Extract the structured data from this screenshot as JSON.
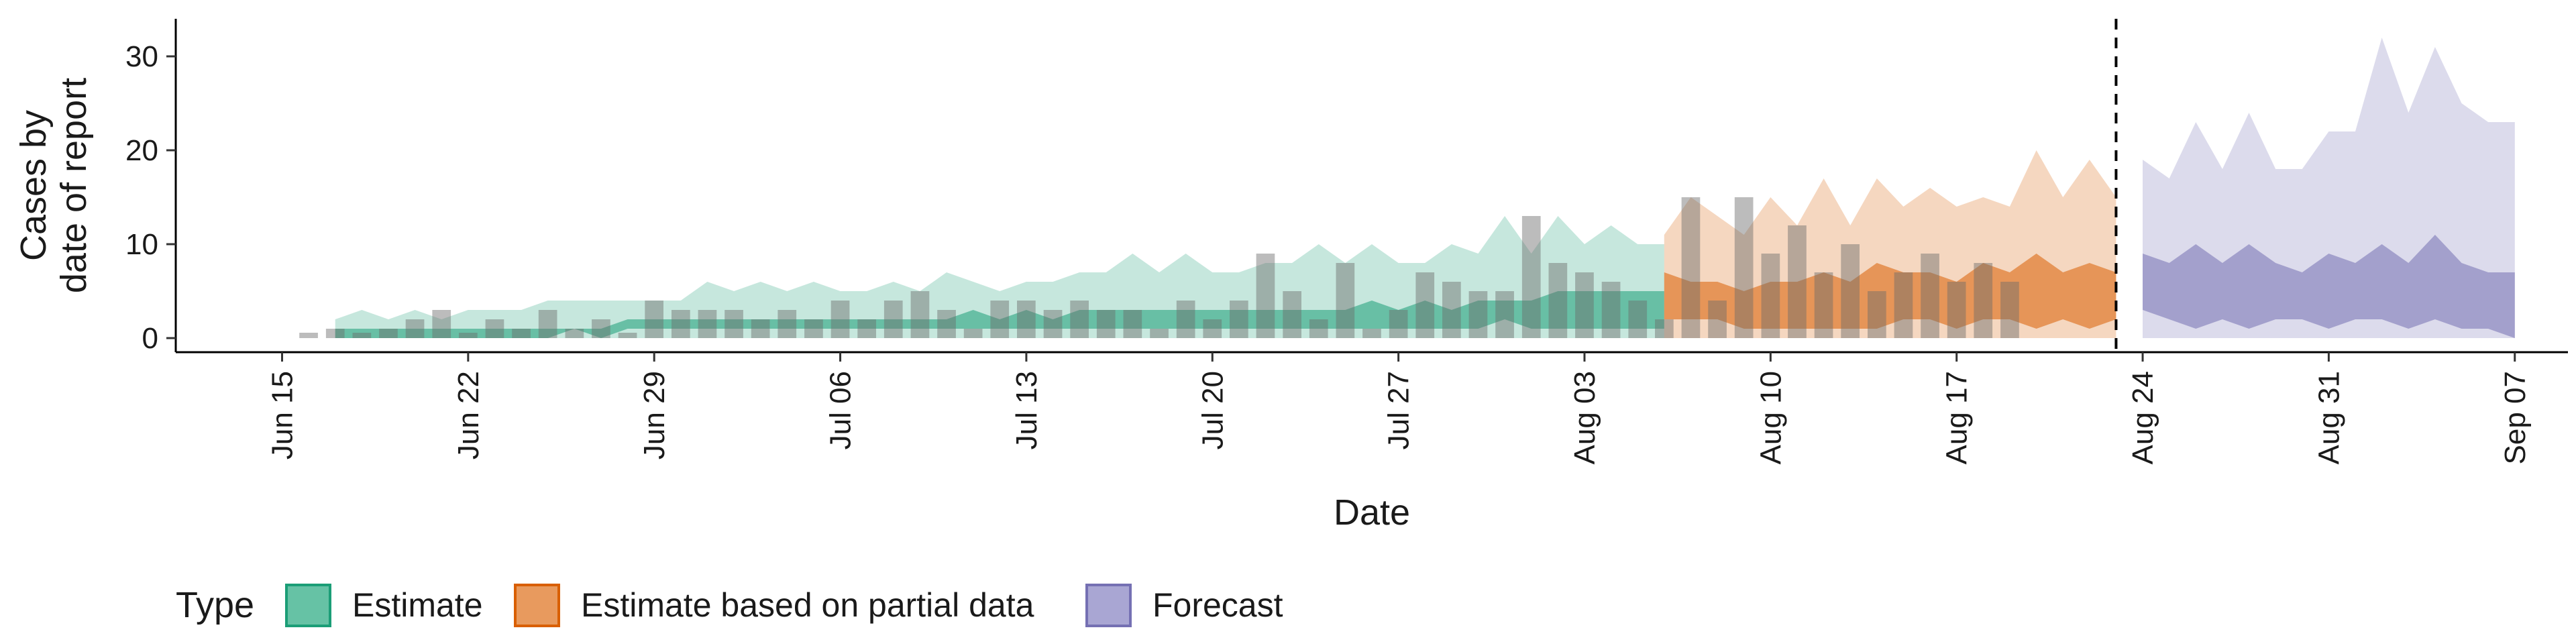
{
  "chart_data": {
    "type": "area",
    "xlabel": "Date",
    "ylabel_lines": [
      "Cases by",
      "date of report"
    ],
    "ylim": [
      -1.5,
      34
    ],
    "yticks": [
      0,
      10,
      20,
      30
    ],
    "xlim": [
      "2020-06-11",
      "2020-09-09"
    ],
    "xticks": [
      {
        "date": "2020-06-15",
        "label": "Jun 15"
      },
      {
        "date": "2020-06-22",
        "label": "Jun 22"
      },
      {
        "date": "2020-06-29",
        "label": "Jun 29"
      },
      {
        "date": "2020-07-06",
        "label": "Jul 06"
      },
      {
        "date": "2020-07-13",
        "label": "Jul 13"
      },
      {
        "date": "2020-07-20",
        "label": "Jul 20"
      },
      {
        "date": "2020-07-27",
        "label": "Jul 27"
      },
      {
        "date": "2020-08-03",
        "label": "Aug 03"
      },
      {
        "date": "2020-08-10",
        "label": "Aug 10"
      },
      {
        "date": "2020-08-17",
        "label": "Aug 17"
      },
      {
        "date": "2020-08-24",
        "label": "Aug 24"
      },
      {
        "date": "2020-08-31",
        "label": "Aug 31"
      },
      {
        "date": "2020-09-07",
        "label": "Sep 07"
      }
    ],
    "forecast_start": "2020-08-23",
    "legend": {
      "title": "Type",
      "position": "bottom-left",
      "items": [
        {
          "label": "Estimate",
          "fill": "#66C2A5",
          "stroke": "#1B9E77"
        },
        {
          "label": "Estimate based on partial data",
          "fill": "#E89A5E",
          "stroke": "#D95F02"
        },
        {
          "label": "Forecast",
          "fill": "#A9A6D3",
          "stroke": "#7570B3"
        }
      ]
    },
    "observed": {
      "start": "2020-06-16",
      "values": [
        0,
        1,
        0,
        1,
        2,
        3,
        0,
        2,
        1,
        3,
        1,
        2,
        0,
        4,
        3,
        3,
        3,
        2,
        3,
        2,
        4,
        2,
        4,
        5,
        3,
        1,
        4,
        4,
        3,
        4,
        3,
        3,
        1,
        4,
        2,
        4,
        9,
        5,
        2,
        8,
        1,
        3,
        7,
        6,
        5,
        5,
        13,
        8,
        7,
        6,
        4,
        2,
        15,
        4,
        15,
        9,
        12,
        7,
        10,
        5,
        7,
        9,
        6,
        8,
        6
      ]
    },
    "series": [
      {
        "name": "Estimate",
        "color": "#1B9E77",
        "start": "2020-06-17",
        "outer_low": [
          0,
          0,
          0,
          0,
          0,
          0,
          0,
          0,
          0,
          0,
          0,
          0,
          0,
          0,
          0,
          0,
          0,
          0,
          0,
          0,
          0,
          0,
          0,
          0,
          0,
          0,
          0,
          0,
          0,
          0,
          0,
          0,
          0,
          0,
          0,
          0,
          0,
          0,
          0,
          0,
          0,
          0,
          0,
          0,
          0,
          0,
          0,
          0,
          0,
          0,
          0
        ],
        "outer_high": [
          2,
          3,
          2,
          3,
          2,
          3,
          3,
          3,
          4,
          4,
          4,
          4,
          4,
          4,
          6,
          5,
          6,
          5,
          6,
          5,
          5,
          6,
          5,
          7,
          6,
          5,
          6,
          6,
          7,
          7,
          9,
          7,
          9,
          7,
          7,
          8,
          8,
          10,
          8,
          10,
          8,
          8,
          10,
          9,
          13,
          9,
          13,
          10,
          12,
          10,
          10
        ],
        "inner_low": [
          0,
          0,
          0,
          0,
          0,
          0,
          0,
          0,
          0,
          1,
          0,
          1,
          1,
          1,
          1,
          1,
          1,
          1,
          1,
          1,
          1,
          1,
          1,
          1,
          1,
          1,
          1,
          1,
          1,
          1,
          1,
          1,
          1,
          1,
          1,
          1,
          1,
          1,
          1,
          1,
          1,
          1,
          1,
          1,
          2,
          1,
          1,
          1,
          1,
          1,
          1
        ],
        "inner_high": [
          1,
          1,
          1,
          1,
          1,
          1,
          1,
          1,
          1,
          1,
          1,
          2,
          2,
          2,
          2,
          2,
          2,
          2,
          2,
          2,
          2,
          2,
          2,
          2,
          3,
          2,
          3,
          2,
          3,
          3,
          3,
          3,
          3,
          3,
          3,
          3,
          3,
          3,
          3,
          4,
          3,
          4,
          3,
          4,
          4,
          4,
          5,
          5,
          5,
          5,
          5
        ]
      },
      {
        "name": "Estimate based on partial data",
        "color": "#D95F02",
        "start": "2020-08-06",
        "outer_low": [
          0,
          0,
          0,
          0,
          0,
          0,
          0,
          0,
          0,
          0,
          0,
          0,
          0,
          0,
          0,
          0,
          0,
          0
        ],
        "outer_high": [
          11,
          15,
          13,
          11,
          15,
          12,
          17,
          12,
          17,
          14,
          16,
          14,
          15,
          14,
          20,
          15,
          19,
          15
        ],
        "inner_low": [
          2,
          2,
          2,
          1,
          1,
          1,
          1,
          1,
          1,
          2,
          2,
          1,
          2,
          2,
          1,
          2,
          1,
          2
        ],
        "inner_high": [
          7,
          6,
          6,
          5,
          6,
          6,
          7,
          6,
          8,
          7,
          7,
          6,
          8,
          7,
          9,
          7,
          8,
          7
        ]
      },
      {
        "name": "Forecast",
        "color": "#7570B3",
        "start": "2020-08-24",
        "outer_low": [
          0,
          0,
          0,
          0,
          0,
          0,
          0,
          0,
          0,
          0,
          0,
          0,
          0,
          0,
          0
        ],
        "outer_high": [
          19,
          17,
          23,
          18,
          24,
          18,
          18,
          22,
          22,
          32,
          24,
          31,
          25,
          23,
          23
        ],
        "inner_low": [
          3,
          2,
          1,
          2,
          1,
          2,
          2,
          1,
          2,
          2,
          1,
          2,
          1,
          1,
          0
        ],
        "inner_high": [
          9,
          8,
          10,
          8,
          10,
          8,
          7,
          9,
          8,
          10,
          8,
          11,
          8,
          7,
          7
        ]
      }
    ]
  }
}
